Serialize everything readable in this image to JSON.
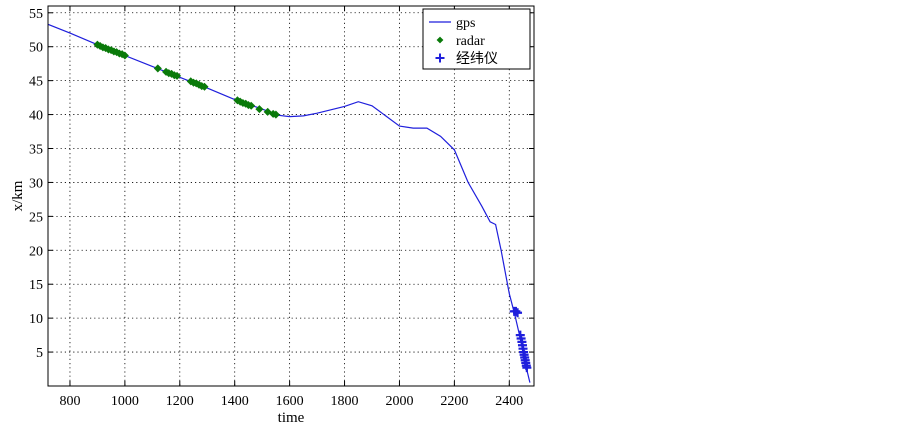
{
  "chart_data": {
    "type": "line",
    "title": "",
    "xlabel": "time",
    "ylabel": "x/km",
    "xlim": [
      720,
      2490
    ],
    "ylim": [
      0,
      56
    ],
    "xticks": [
      800,
      1000,
      1200,
      1400,
      1600,
      1800,
      2000,
      2200,
      2400
    ],
    "yticks": [
      5,
      10,
      15,
      20,
      25,
      30,
      35,
      40,
      45,
      50,
      55
    ],
    "grid": true,
    "legend_position": "top-right",
    "colors": {
      "gps": "#1f1fdc",
      "radar": "#0a7a0a",
      "theodolite": "#1f1fdc"
    },
    "series": [
      {
        "name": "gps",
        "style": "line",
        "points": [
          [
            720,
            53.3
          ],
          [
            800,
            52.0
          ],
          [
            900,
            50.3
          ],
          [
            1000,
            48.7
          ],
          [
            1100,
            47.1
          ],
          [
            1200,
            45.5
          ],
          [
            1300,
            43.9
          ],
          [
            1400,
            42.2
          ],
          [
            1500,
            40.8
          ],
          [
            1560,
            39.9
          ],
          [
            1600,
            39.7
          ],
          [
            1650,
            39.8
          ],
          [
            1700,
            40.2
          ],
          [
            1750,
            40.7
          ],
          [
            1800,
            41.2
          ],
          [
            1850,
            41.9
          ],
          [
            1900,
            41.3
          ],
          [
            1950,
            39.8
          ],
          [
            2000,
            38.3
          ],
          [
            2050,
            38.0
          ],
          [
            2100,
            38.0
          ],
          [
            2150,
            36.8
          ],
          [
            2200,
            34.8
          ],
          [
            2250,
            30.0
          ],
          [
            2300,
            26.5
          ],
          [
            2330,
            24.2
          ],
          [
            2350,
            23.8
          ],
          [
            2370,
            20.0
          ],
          [
            2400,
            13.6
          ],
          [
            2420,
            10.5
          ],
          [
            2440,
            7.0
          ],
          [
            2460,
            3.0
          ],
          [
            2475,
            0.5
          ]
        ]
      },
      {
        "name": "radar",
        "style": "marker",
        "points": [
          [
            900,
            50.3
          ],
          [
            910,
            50.1
          ],
          [
            920,
            49.9
          ],
          [
            930,
            49.8
          ],
          [
            940,
            49.6
          ],
          [
            950,
            49.5
          ],
          [
            960,
            49.3
          ],
          [
            970,
            49.2
          ],
          [
            980,
            49.0
          ],
          [
            990,
            48.9
          ],
          [
            1000,
            48.7
          ],
          [
            1120,
            46.8
          ],
          [
            1150,
            46.3
          ],
          [
            1160,
            46.1
          ],
          [
            1170,
            46.0
          ],
          [
            1180,
            45.8
          ],
          [
            1190,
            45.7
          ],
          [
            1240,
            44.9
          ],
          [
            1250,
            44.7
          ],
          [
            1260,
            44.6
          ],
          [
            1270,
            44.4
          ],
          [
            1280,
            44.2
          ],
          [
            1290,
            44.1
          ],
          [
            1410,
            42.1
          ],
          [
            1420,
            41.9
          ],
          [
            1430,
            41.7
          ],
          [
            1440,
            41.6
          ],
          [
            1450,
            41.4
          ],
          [
            1460,
            41.3
          ],
          [
            1490,
            40.8
          ],
          [
            1520,
            40.4
          ],
          [
            1540,
            40.1
          ],
          [
            1550,
            40.0
          ]
        ]
      },
      {
        "name": "经纬仪",
        "style": "marker",
        "points": [
          [
            2418,
            11.0
          ],
          [
            2424,
            11.0
          ],
          [
            2430,
            10.8
          ],
          [
            2440,
            7.5
          ],
          [
            2443,
            7.0
          ],
          [
            2446,
            6.5
          ],
          [
            2448,
            6.0
          ],
          [
            2450,
            5.5
          ],
          [
            2452,
            5.0
          ],
          [
            2454,
            4.6
          ],
          [
            2456,
            4.2
          ],
          [
            2458,
            3.8
          ],
          [
            2460,
            3.4
          ],
          [
            2462,
            3.0
          ],
          [
            2464,
            2.7
          ]
        ]
      }
    ]
  }
}
